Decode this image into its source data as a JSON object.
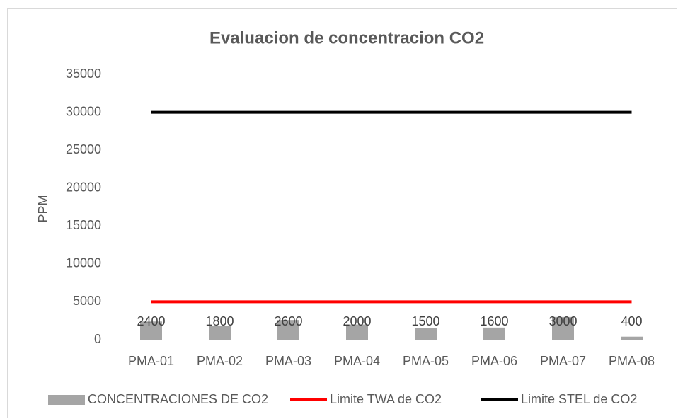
{
  "chart_data": {
    "type": "bar",
    "title": "Evaluacion de concentracion CO2",
    "y_label": "PPM",
    "categories": [
      "PMA-01",
      "PMA-02",
      "PMA-03",
      "PMA-04",
      "PMA-05",
      "PMA-06",
      "PMA-07",
      "PMA-08"
    ],
    "series": [
      {
        "name": "CONCENTRACIONES DE  CO2",
        "type": "bar",
        "color": "#a5a5a5",
        "values": [
          2400,
          1800,
          2600,
          2000,
          1500,
          1600,
          3000,
          400
        ]
      },
      {
        "name": "Limite TWA de CO2",
        "type": "line",
        "color": "#ff0000",
        "values": [
          5000,
          5000,
          5000,
          5000,
          5000,
          5000,
          5000,
          5000
        ]
      },
      {
        "name": "Limite STEL de CO2",
        "type": "line",
        "color": "#000000",
        "values": [
          30000,
          30000,
          30000,
          30000,
          30000,
          30000,
          30000,
          30000
        ]
      }
    ],
    "ylim": [
      0,
      35000
    ],
    "yticks": [
      0,
      5000,
      10000,
      15000,
      20000,
      25000,
      30000,
      35000
    ],
    "grid": false,
    "legend": "bottom"
  }
}
